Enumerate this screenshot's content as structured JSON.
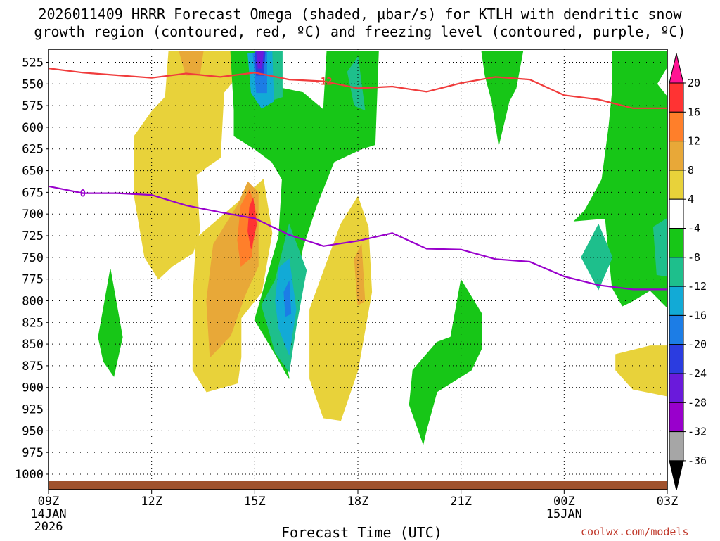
{
  "chart_data": {
    "type": "contour",
    "title_line1": "2026011409 HRRR Forecast Omega (shaded, µbar/s) for KTLH with dendritic snow",
    "title_line2": "growth region (contoured, red, ºC) and freezing level (contoured, purple, ºC)",
    "xlabel": "Forecast Time (UTC)",
    "credit": "coolwx.com/models",
    "x_hours": [
      0,
      3,
      6,
      9,
      12,
      15,
      18
    ],
    "x_ticks": [
      {
        "hour": 0,
        "label": "09Z",
        "sub1": "14JAN",
        "sub2": "2026"
      },
      {
        "hour": 3,
        "label": "12Z",
        "sub1": "",
        "sub2": ""
      },
      {
        "hour": 6,
        "label": "15Z",
        "sub1": "",
        "sub2": ""
      },
      {
        "hour": 9,
        "label": "18Z",
        "sub1": "",
        "sub2": ""
      },
      {
        "hour": 12,
        "label": "21Z",
        "sub1": "",
        "sub2": ""
      },
      {
        "hour": 15,
        "label": "00Z",
        "sub1": "15JAN",
        "sub2": ""
      },
      {
        "hour": 18,
        "label": "03Z",
        "sub1": "",
        "sub2": ""
      }
    ],
    "y_ticks": [
      525,
      550,
      575,
      600,
      625,
      650,
      675,
      700,
      725,
      750,
      775,
      800,
      825,
      850,
      875,
      900,
      925,
      950,
      975,
      1000
    ],
    "ylim_hPa": [
      510,
      1013
    ],
    "colorbar": {
      "labels": [
        "20",
        "16",
        "12",
        "8",
        "4",
        "-4",
        "-8",
        "-12",
        "-16",
        "-20",
        "-24",
        "-28",
        "-32",
        "-36"
      ],
      "colors": [
        "#ff1493",
        "#ff3333",
        "#ff7f2a",
        "#e8a838",
        "#e8d23a",
        "#ffffff",
        "#17c617",
        "#1ebf8c",
        "#12aad6",
        "#1c7de6",
        "#2b3ce0",
        "#6a1adb",
        "#9900cc",
        "#a6a6a6",
        "#000000"
      ]
    },
    "series": [
      {
        "name": "dendritic -12C",
        "color": "#f03c3c",
        "label": "-12",
        "label_hour": 8.0,
        "points": [
          [
            0,
            532
          ],
          [
            1,
            537
          ],
          [
            2,
            540
          ],
          [
            3,
            543
          ],
          [
            4,
            538
          ],
          [
            5,
            542
          ],
          [
            6,
            537
          ],
          [
            7,
            545
          ],
          [
            8,
            547
          ],
          [
            9,
            555
          ],
          [
            10,
            553
          ],
          [
            11,
            559
          ],
          [
            12,
            549
          ],
          [
            13,
            542
          ],
          [
            14,
            545
          ],
          [
            15,
            563
          ],
          [
            16,
            568
          ],
          [
            17,
            578
          ],
          [
            18,
            578
          ]
        ]
      },
      {
        "name": "freezing level 0C",
        "color": "#9900cc",
        "label": "0",
        "label_hour": 1.0,
        "points": [
          [
            0,
            668
          ],
          [
            1,
            676
          ],
          [
            2,
            676
          ],
          [
            3,
            678
          ],
          [
            4,
            690
          ],
          [
            5,
            698
          ],
          [
            6,
            705
          ],
          [
            7,
            724
          ],
          [
            8,
            737
          ],
          [
            9,
            731
          ],
          [
            10,
            722
          ],
          [
            11,
            740
          ],
          [
            12,
            741
          ],
          [
            13,
            752
          ],
          [
            14,
            755
          ],
          [
            15,
            772
          ],
          [
            16,
            782
          ],
          [
            17,
            787
          ],
          [
            18,
            787
          ]
        ]
      }
    ],
    "omega_regions": [
      {
        "value": "4 to 8",
        "color": "#e8d23a",
        "points": [
          [
            2.5,
            610
          ],
          [
            3,
            582
          ],
          [
            3.4,
            565
          ],
          [
            3.5,
            512
          ],
          [
            5.4,
            512
          ],
          [
            5.4,
            545
          ],
          [
            5.1,
            560
          ],
          [
            5,
            635
          ],
          [
            4.6,
            646
          ],
          [
            4.3,
            655
          ],
          [
            4.4,
            720
          ],
          [
            4.2,
            745
          ],
          [
            3.6,
            760
          ],
          [
            3.2,
            775
          ],
          [
            2.8,
            750
          ],
          [
            2.5,
            680
          ]
        ]
      },
      {
        "value": "4 to 8",
        "color": "#e8d23a",
        "points": [
          [
            4.3,
            728
          ],
          [
            5.7,
            680
          ],
          [
            6.25,
            660
          ],
          [
            6.5,
            722
          ],
          [
            6.2,
            790
          ],
          [
            5.6,
            820
          ],
          [
            5.6,
            865
          ],
          [
            5.5,
            895
          ],
          [
            4.6,
            905
          ],
          [
            4.2,
            880
          ],
          [
            4.2,
            800
          ]
        ]
      },
      {
        "value": "4 to 8",
        "color": "#e8d23a",
        "points": [
          [
            7.6,
            810
          ],
          [
            8.5,
            712
          ],
          [
            9.0,
            680
          ],
          [
            9.3,
            715
          ],
          [
            9.4,
            790
          ],
          [
            9.0,
            880
          ],
          [
            8.5,
            938
          ],
          [
            8.0,
            935
          ],
          [
            7.6,
            890
          ]
        ]
      },
      {
        "value": "4 to 8",
        "color": "#e8d23a",
        "points": [
          [
            16.5,
            862
          ],
          [
            17.5,
            852
          ],
          [
            18,
            852
          ],
          [
            18,
            910
          ],
          [
            17.0,
            902
          ],
          [
            16.5,
            880
          ]
        ]
      },
      {
        "value": "8 to 12",
        "color": "#e8a838",
        "points": [
          [
            3.8,
            512
          ],
          [
            4.5,
            512
          ],
          [
            4.4,
            540
          ],
          [
            4.0,
            540
          ]
        ]
      },
      {
        "value": "8 to 12",
        "color": "#e8a838",
        "points": [
          [
            4.8,
            735
          ],
          [
            5.5,
            690
          ],
          [
            5.8,
            663
          ],
          [
            6.1,
            675
          ],
          [
            6.1,
            760
          ],
          [
            5.7,
            795
          ],
          [
            5.3,
            840
          ],
          [
            4.7,
            865
          ],
          [
            4.6,
            800
          ]
        ]
      },
      {
        "value": "8 to 12",
        "color": "#e8a838",
        "points": [
          [
            8.9,
            752
          ],
          [
            9.1,
            735
          ],
          [
            9.2,
            800
          ],
          [
            9.0,
            805
          ]
        ]
      },
      {
        "value": "12 to 16",
        "color": "#ff7f2a",
        "points": [
          [
            5.6,
            690
          ],
          [
            5.85,
            672
          ],
          [
            6.05,
            700
          ],
          [
            5.9,
            750
          ],
          [
            5.6,
            760
          ],
          [
            5.5,
            730
          ]
        ]
      },
      {
        "value": "16 to 20",
        "color": "#ff3333",
        "points": [
          [
            5.85,
            692
          ],
          [
            5.95,
            682
          ],
          [
            6.05,
            712
          ],
          [
            5.9,
            740
          ],
          [
            5.8,
            720
          ]
        ]
      },
      {
        "value": "-4 to -8",
        "color": "#17c617",
        "points": [
          [
            5.3,
            512
          ],
          [
            6.7,
            512
          ],
          [
            6.8,
            555
          ],
          [
            7.4,
            560
          ],
          [
            8.0,
            580
          ],
          [
            8.1,
            512
          ],
          [
            9.6,
            512
          ],
          [
            9.5,
            620
          ],
          [
            9.1,
            625
          ],
          [
            8.3,
            640
          ],
          [
            7.8,
            690
          ],
          [
            7.4,
            738
          ],
          [
            7.2,
            780
          ],
          [
            7.0,
            820
          ],
          [
            6.8,
            850
          ],
          [
            6.9,
            870
          ],
          [
            7.0,
            890
          ],
          [
            6.6,
            862
          ],
          [
            6.0,
            822
          ],
          [
            6.2,
            795
          ],
          [
            6.7,
            726
          ],
          [
            6.8,
            660
          ],
          [
            6.5,
            640
          ],
          [
            6.0,
            625
          ],
          [
            5.4,
            610
          ],
          [
            5.4,
            580
          ]
        ]
      },
      {
        "value": "-4 to -8",
        "color": "#17c617",
        "points": [
          [
            1.45,
            842
          ],
          [
            1.8,
            764
          ],
          [
            2.15,
            842
          ],
          [
            1.9,
            887
          ],
          [
            1.6,
            870
          ]
        ]
      },
      {
        "value": "-4 to -8",
        "color": "#17c617",
        "points": [
          [
            10.6,
            880
          ],
          [
            11.3,
            848
          ],
          [
            11.7,
            842
          ],
          [
            12.0,
            776
          ],
          [
            12.6,
            815
          ],
          [
            12.6,
            855
          ],
          [
            12.3,
            880
          ],
          [
            11.3,
            905
          ],
          [
            11.0,
            948
          ],
          [
            10.9,
            965
          ],
          [
            10.5,
            920
          ]
        ]
      },
      {
        "value": "-4 to -8",
        "color": "#17c617",
        "points": [
          [
            12.6,
            512
          ],
          [
            13.8,
            512
          ],
          [
            13.6,
            555
          ],
          [
            13.4,
            570
          ],
          [
            13.1,
            620
          ],
          [
            12.9,
            570
          ],
          [
            12.7,
            540
          ]
        ]
      },
      {
        "value": "-4 to -8",
        "color": "#17c617",
        "points": [
          [
            16.4,
            512
          ],
          [
            18,
            512
          ],
          [
            18,
            530
          ],
          [
            17.7,
            550
          ],
          [
            18,
            565
          ],
          [
            18,
            808
          ],
          [
            17.5,
            788
          ],
          [
            17.0,
            800
          ],
          [
            16.7,
            806
          ],
          [
            16.4,
            785
          ],
          [
            16.2,
            705
          ],
          [
            15.3,
            708
          ],
          [
            15.6,
            696
          ],
          [
            16.1,
            660
          ],
          [
            16.3,
            600
          ],
          [
            16.4,
            560
          ]
        ]
      },
      {
        "value": "-8 to -12",
        "color": "#1ebf8c",
        "points": [
          [
            6.4,
            512
          ],
          [
            6.8,
            512
          ],
          [
            6.8,
            565
          ],
          [
            6.4,
            570
          ]
        ]
      },
      {
        "value": "-8 to -12",
        "color": "#1ebf8c",
        "points": [
          [
            8.7,
            536
          ],
          [
            9.0,
            519
          ],
          [
            9.2,
            580
          ],
          [
            8.9,
            575
          ]
        ]
      },
      {
        "value": "-8 to -12",
        "color": "#1ebf8c",
        "points": [
          [
            6.6,
            776
          ],
          [
            7.0,
            712
          ],
          [
            7.5,
            765
          ],
          [
            7.2,
            830
          ],
          [
            7.0,
            882
          ],
          [
            6.6,
            860
          ],
          [
            6.2,
            805
          ]
        ]
      },
      {
        "value": "-8 to -12",
        "color": "#1ebf8c",
        "points": [
          [
            15.5,
            750
          ],
          [
            16.0,
            712
          ],
          [
            16.4,
            750
          ],
          [
            16.0,
            787
          ]
        ]
      },
      {
        "value": "-8 to -12",
        "color": "#1ebf8c",
        "points": [
          [
            17.6,
            715
          ],
          [
            18,
            705
          ],
          [
            18,
            772
          ],
          [
            17.7,
            770
          ]
        ]
      },
      {
        "value": "-12 to -16",
        "color": "#12aad6",
        "points": [
          [
            5.8,
            515
          ],
          [
            6.5,
            513
          ],
          [
            6.55,
            570
          ],
          [
            6.2,
            578
          ],
          [
            5.9,
            560
          ]
        ]
      },
      {
        "value": "-12 to -16",
        "color": "#12aad6",
        "points": [
          [
            6.7,
            762
          ],
          [
            7.0,
            752
          ],
          [
            7.2,
            810
          ],
          [
            7.0,
            862
          ],
          [
            6.7,
            832
          ],
          [
            6.6,
            800
          ]
        ]
      },
      {
        "value": "-16 to -20",
        "color": "#1c7de6",
        "points": [
          [
            5.95,
            515
          ],
          [
            6.35,
            513
          ],
          [
            6.35,
            560
          ],
          [
            6.05,
            560
          ]
        ]
      },
      {
        "value": "-16 to -20",
        "color": "#1c7de6",
        "points": [
          [
            6.85,
            790
          ],
          [
            7.0,
            778
          ],
          [
            7.05,
            815
          ],
          [
            6.9,
            818
          ]
        ]
      },
      {
        "value": "-20 to -24",
        "color": "#2b3ce0",
        "points": [
          [
            6.0,
            513
          ],
          [
            6.3,
            513
          ],
          [
            6.25,
            540
          ],
          [
            6.05,
            540
          ]
        ]
      },
      {
        "value": "-24 to -28",
        "color": "#6a1adb",
        "points": [
          [
            6.05,
            512
          ],
          [
            6.25,
            512
          ],
          [
            6.2,
            532
          ],
          [
            6.1,
            532
          ]
        ]
      }
    ]
  }
}
